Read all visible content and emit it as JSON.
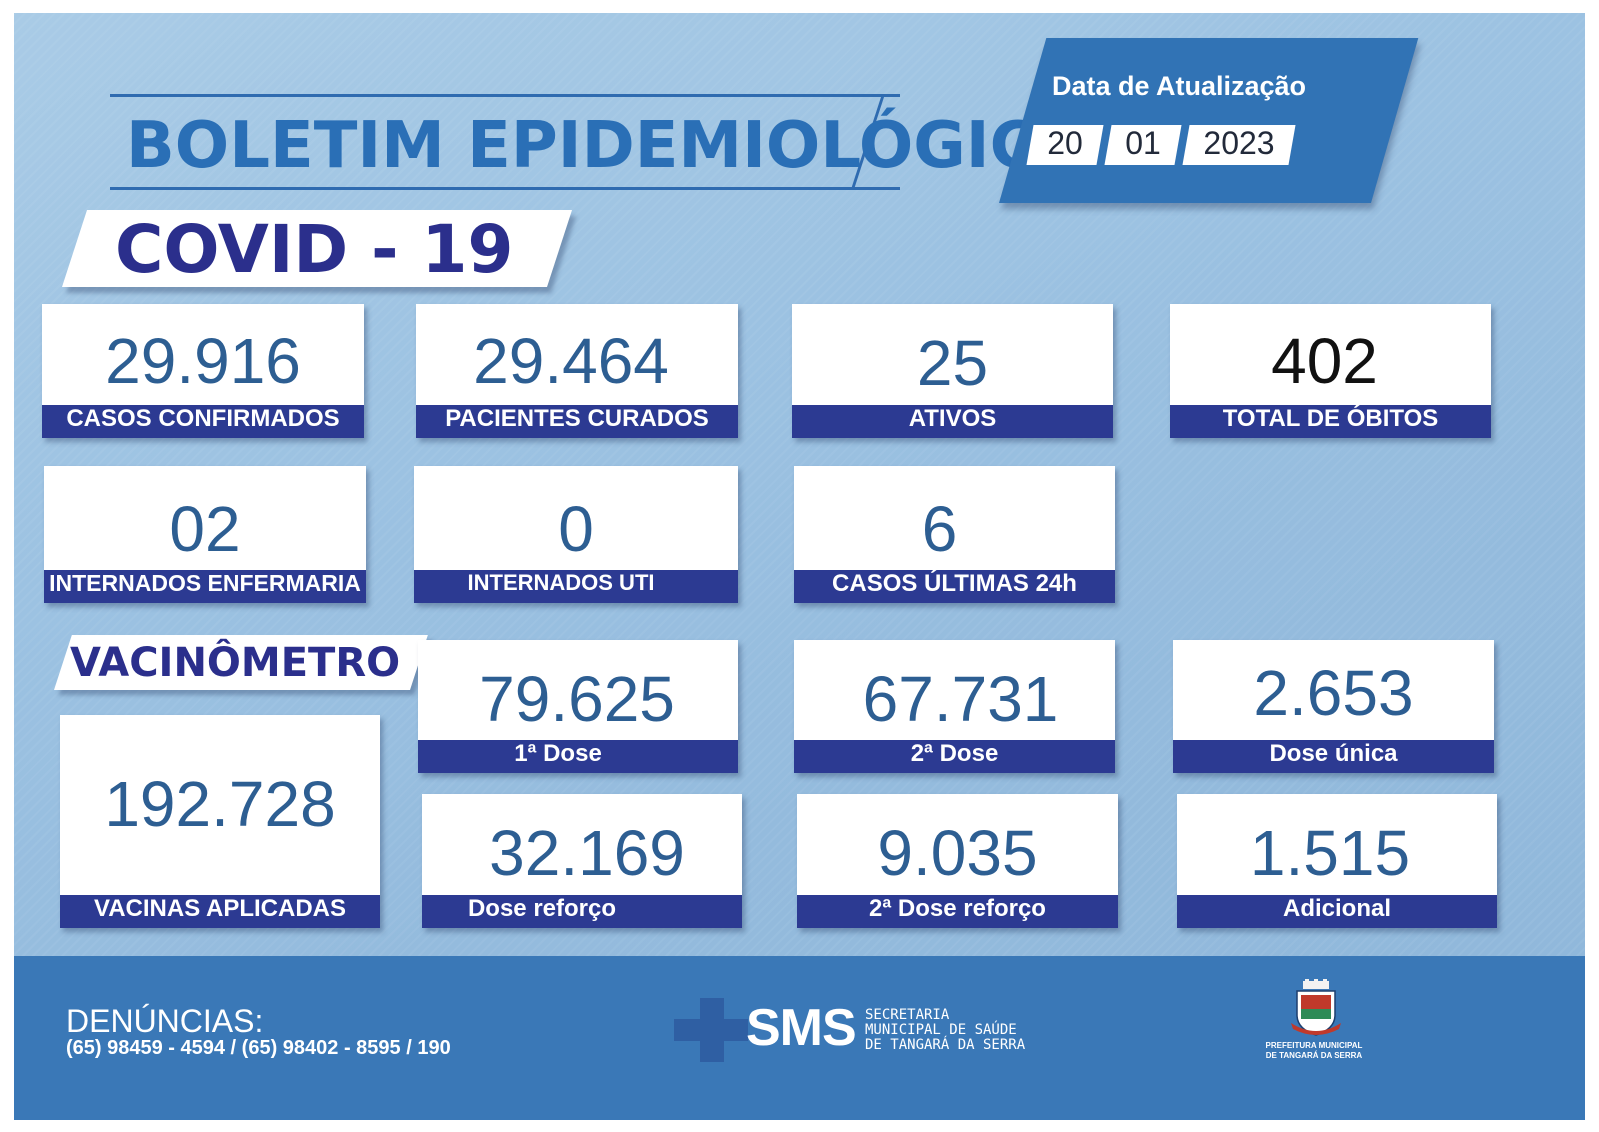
{
  "header": {
    "title": "BOLETIM EPIDEMIOLÓGICO",
    "subtitle": "COVID - 19"
  },
  "update": {
    "label": "Data de Atualização",
    "day": "20",
    "month": "01",
    "year": "2023"
  },
  "covid_cards": [
    {
      "value": "29.916",
      "label": "CASOS CONFIRMADOS"
    },
    {
      "value": "29.464",
      "label": "PACIENTES CURADOS"
    },
    {
      "value": "25",
      "label": "ATIVOS"
    },
    {
      "value": "402",
      "label": "TOTAL DE ÓBITOS"
    },
    {
      "value": "02",
      "label": "INTERNADOS ENFERMARIA"
    },
    {
      "value": "0",
      "label": "INTERNADOS UTI"
    },
    {
      "value": "6",
      "label": "CASOS ÚLTIMAS 24h"
    }
  ],
  "vacinometro": {
    "title": "VACINÔMETRO",
    "total": {
      "value": "192.728",
      "label": "VACINAS APLICADAS"
    },
    "cards": [
      {
        "value": "79.625",
        "label": "1ª Dose"
      },
      {
        "value": "67.731",
        "label": "2ª Dose"
      },
      {
        "value": "2.653",
        "label": "Dose única"
      },
      {
        "value": "32.169",
        "label": "Dose reforço"
      },
      {
        "value": "9.035",
        "label": "2ª Dose reforço"
      },
      {
        "value": "1.515",
        "label": "Adicional"
      }
    ]
  },
  "footer": {
    "denuncias_title": "DENÚNCIAS:",
    "denuncias_phones": "(65) 98459 - 4594 / (65) 98402 - 8595 / 190",
    "sms_logo": "SMS",
    "sms_subtitle_1": "SECRETARIA",
    "sms_subtitle_2": "MUNICIPAL DE SAÚDE",
    "sms_subtitle_3": "DE TANGARÁ DA SERRA",
    "prefeitura_line1": "PREFEITURA MUNICIPAL",
    "prefeitura_line2": "DE TANGARÁ DA SERRA"
  },
  "colors": {
    "label_bar": "#2c3a92",
    "number_text": "#2d5e92",
    "title_text": "#2a6fb6",
    "footer_bg": "#3a78b7"
  }
}
